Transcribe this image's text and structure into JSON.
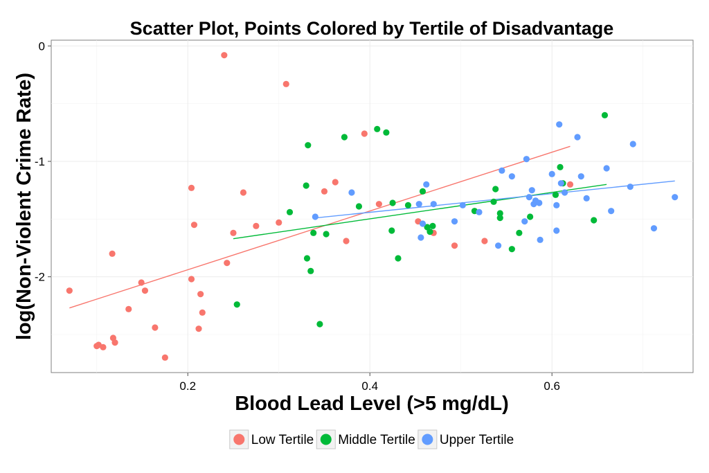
{
  "chart_data": {
    "type": "scatter",
    "title": "Scatter Plot, Points Colored by Tertile of Disadvantage",
    "xlabel": "Blood Lead Level (>5 mg/dL)",
    "ylabel": "log(Non-Violent Crime Rate)",
    "xlim": [
      0.05,
      0.755
    ],
    "ylim": [
      -2.83,
      0.05
    ],
    "xticks": [
      0.2,
      0.4,
      0.6
    ],
    "xtick_labels": [
      "0.2",
      "0.4",
      "0.6"
    ],
    "yticks": [
      0,
      -1,
      -2
    ],
    "ytick_labels": [
      "0",
      "-1",
      "-2"
    ],
    "grid": true,
    "legend_position": "bottom",
    "series": [
      {
        "name": "Low Tertile",
        "color": "#F8766D",
        "fit": {
          "x": [
            0.07,
            0.62
          ],
          "y": [
            -2.27,
            -0.87
          ]
        },
        "points": [
          [
            0.07,
            -2.12
          ],
          [
            0.1,
            -2.6
          ],
          [
            0.102,
            -2.59
          ],
          [
            0.107,
            -2.61
          ],
          [
            0.117,
            -1.8
          ],
          [
            0.118,
            -2.53
          ],
          [
            0.12,
            -2.57
          ],
          [
            0.135,
            -2.28
          ],
          [
            0.149,
            -2.05
          ],
          [
            0.153,
            -2.12
          ],
          [
            0.164,
            -2.44
          ],
          [
            0.175,
            -2.7
          ],
          [
            0.204,
            -1.23
          ],
          [
            0.204,
            -2.02
          ],
          [
            0.207,
            -1.55
          ],
          [
            0.212,
            -2.45
          ],
          [
            0.214,
            -2.15
          ],
          [
            0.216,
            -2.31
          ],
          [
            0.24,
            -0.08
          ],
          [
            0.243,
            -1.88
          ],
          [
            0.25,
            -1.62
          ],
          [
            0.261,
            -1.27
          ],
          [
            0.275,
            -1.56
          ],
          [
            0.3,
            -1.53
          ],
          [
            0.308,
            -0.33
          ],
          [
            0.35,
            -1.26
          ],
          [
            0.362,
            -1.18
          ],
          [
            0.374,
            -1.69
          ],
          [
            0.394,
            -0.76
          ],
          [
            0.41,
            -1.37
          ],
          [
            0.453,
            -1.52
          ],
          [
            0.47,
            -1.62
          ],
          [
            0.493,
            -1.73
          ],
          [
            0.526,
            -1.69
          ],
          [
            0.62,
            -1.2
          ]
        ]
      },
      {
        "name": "Middle Tertile",
        "color": "#00BA38",
        "fit": {
          "x": [
            0.25,
            0.66
          ],
          "y": [
            -1.67,
            -1.2
          ]
        },
        "points": [
          [
            0.254,
            -2.24
          ],
          [
            0.312,
            -1.44
          ],
          [
            0.33,
            -1.21
          ],
          [
            0.331,
            -1.84
          ],
          [
            0.332,
            -0.86
          ],
          [
            0.335,
            -1.95
          ],
          [
            0.338,
            -1.62
          ],
          [
            0.345,
            -2.41
          ],
          [
            0.352,
            -1.63
          ],
          [
            0.372,
            -0.79
          ],
          [
            0.388,
            -1.39
          ],
          [
            0.408,
            -0.72
          ],
          [
            0.418,
            -0.75
          ],
          [
            0.424,
            -1.6
          ],
          [
            0.425,
            -1.36
          ],
          [
            0.431,
            -1.84
          ],
          [
            0.442,
            -1.38
          ],
          [
            0.458,
            -1.26
          ],
          [
            0.463,
            -1.57
          ],
          [
            0.466,
            -1.61
          ],
          [
            0.469,
            -1.56
          ],
          [
            0.515,
            -1.43
          ],
          [
            0.536,
            -1.35
          ],
          [
            0.538,
            -1.24
          ],
          [
            0.543,
            -1.45
          ],
          [
            0.543,
            -1.49
          ],
          [
            0.556,
            -1.76
          ],
          [
            0.564,
            -1.62
          ],
          [
            0.576,
            -1.48
          ],
          [
            0.604,
            -1.29
          ],
          [
            0.609,
            -1.05
          ],
          [
            0.612,
            -1.19
          ],
          [
            0.646,
            -1.51
          ],
          [
            0.658,
            -0.6
          ]
        ]
      },
      {
        "name": "Upper Tertile",
        "color": "#619CFF",
        "fit": {
          "x": [
            0.34,
            0.735
          ],
          "y": [
            -1.49,
            -1.17
          ]
        },
        "points": [
          [
            0.34,
            -1.48
          ],
          [
            0.38,
            -1.27
          ],
          [
            0.454,
            -1.37
          ],
          [
            0.456,
            -1.66
          ],
          [
            0.458,
            -1.54
          ],
          [
            0.462,
            -1.2
          ],
          [
            0.47,
            -1.37
          ],
          [
            0.493,
            -1.52
          ],
          [
            0.502,
            -1.38
          ],
          [
            0.52,
            -1.44
          ],
          [
            0.541,
            -1.73
          ],
          [
            0.545,
            -1.08
          ],
          [
            0.556,
            -1.13
          ],
          [
            0.57,
            -1.52
          ],
          [
            0.572,
            -0.98
          ],
          [
            0.575,
            -1.31
          ],
          [
            0.578,
            -1.25
          ],
          [
            0.58,
            -1.37
          ],
          [
            0.582,
            -1.34
          ],
          [
            0.586,
            -1.36
          ],
          [
            0.587,
            -1.68
          ],
          [
            0.6,
            -1.11
          ],
          [
            0.605,
            -1.38
          ],
          [
            0.605,
            -1.6
          ],
          [
            0.608,
            -0.68
          ],
          [
            0.614,
            -1.27
          ],
          [
            0.628,
            -0.79
          ],
          [
            0.632,
            -1.13
          ],
          [
            0.638,
            -1.32
          ],
          [
            0.66,
            -1.06
          ],
          [
            0.665,
            -1.43
          ],
          [
            0.686,
            -1.22
          ],
          [
            0.689,
            -0.85
          ],
          [
            0.712,
            -1.58
          ],
          [
            0.735,
            -1.31
          ],
          [
            0.61,
            -1.19
          ]
        ]
      }
    ]
  }
}
